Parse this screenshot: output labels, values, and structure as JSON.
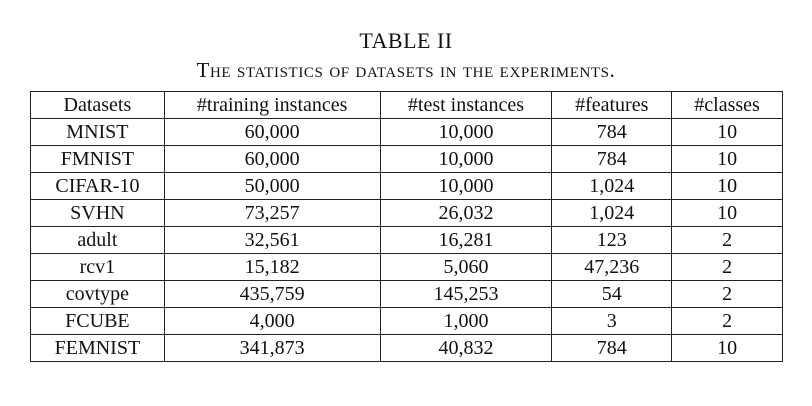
{
  "table": {
    "label": "TABLE II",
    "caption": "The statistics of datasets in the experiments.",
    "headers": [
      "Datasets",
      "#training instances",
      "#test instances",
      "#features",
      "#classes"
    ],
    "rows": [
      [
        "MNIST",
        "60,000",
        "10,000",
        "784",
        "10"
      ],
      [
        "FMNIST",
        "60,000",
        "10,000",
        "784",
        "10"
      ],
      [
        "CIFAR-10",
        "50,000",
        "10,000",
        "1,024",
        "10"
      ],
      [
        "SVHN",
        "73,257",
        "26,032",
        "1,024",
        "10"
      ],
      [
        "adult",
        "32,561",
        "16,281",
        "123",
        "2"
      ],
      [
        "rcv1",
        "15,182",
        "5,060",
        "47,236",
        "2"
      ],
      [
        "covtype",
        "435,759",
        "145,253",
        "54",
        "2"
      ],
      [
        "FCUBE",
        "4,000",
        "1,000",
        "3",
        "2"
      ],
      [
        "FEMNIST",
        "341,873",
        "40,832",
        "784",
        "10"
      ]
    ]
  }
}
